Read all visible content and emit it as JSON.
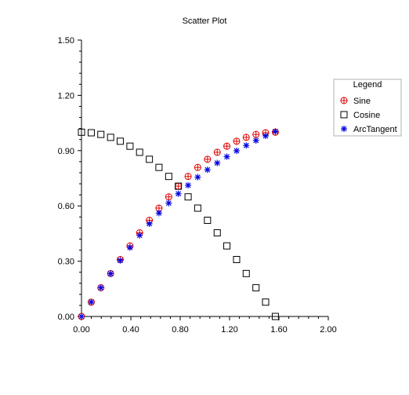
{
  "chart_data": {
    "type": "scatter",
    "title": "Scatter Plot",
    "xlim": [
      0,
      2
    ],
    "ylim": [
      0,
      1.5
    ],
    "x_ticks": [
      "0.00",
      "0.40",
      "0.80",
      "1.20",
      "1.60",
      "2.00"
    ],
    "x_tick_values": [
      0,
      0.4,
      0.8,
      1.2,
      1.6,
      2.0
    ],
    "y_ticks": [
      "0.00",
      "0.30",
      "0.60",
      "0.90",
      "1.20",
      "1.50"
    ],
    "y_tick_values": [
      0,
      0.3,
      0.6,
      0.9,
      1.2,
      1.5
    ],
    "grid": false,
    "legend": {
      "title": "Legend",
      "placement": "right"
    },
    "x": [
      0.0,
      0.079,
      0.157,
      0.236,
      0.314,
      0.393,
      0.471,
      0.55,
      0.628,
      0.707,
      0.785,
      0.864,
      0.942,
      1.021,
      1.1,
      1.178,
      1.257,
      1.335,
      1.414,
      1.492,
      1.571
    ],
    "series": [
      {
        "name": "Sine",
        "marker": "circle-plus",
        "color": "#e00000",
        "values": [
          0.0,
          0.078,
          0.156,
          0.233,
          0.309,
          0.383,
          0.454,
          0.522,
          0.588,
          0.649,
          0.707,
          0.76,
          0.809,
          0.853,
          0.891,
          0.924,
          0.951,
          0.972,
          0.988,
          0.997,
          1.0
        ]
      },
      {
        "name": "Cosine",
        "marker": "square",
        "color": "#000000",
        "values": [
          1.0,
          0.997,
          0.988,
          0.972,
          0.951,
          0.924,
          0.891,
          0.853,
          0.809,
          0.76,
          0.707,
          0.649,
          0.588,
          0.522,
          0.454,
          0.383,
          0.309,
          0.233,
          0.156,
          0.078,
          0.0
        ]
      },
      {
        "name": "ArcTangent",
        "marker": "asterisk",
        "color": "#0000e0",
        "values": [
          0.0,
          0.078,
          0.156,
          0.232,
          0.304,
          0.374,
          0.44,
          0.503,
          0.561,
          0.615,
          0.666,
          0.712,
          0.756,
          0.796,
          0.833,
          0.867,
          0.899,
          0.928,
          0.955,
          0.98,
          1.004
        ]
      }
    ]
  }
}
